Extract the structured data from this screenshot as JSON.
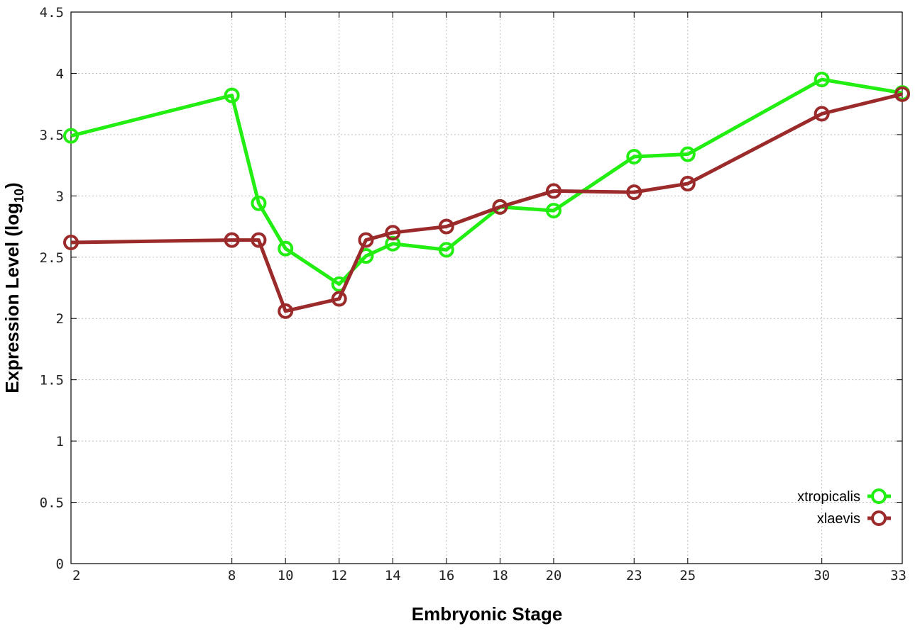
{
  "chart_data": {
    "type": "line",
    "title": "",
    "xlabel": "Embryonic Stage",
    "ylabel": "Expression Level (log",
    "ylabel_subscript": "10",
    "ylabel_suffix": ")",
    "xlim": [
      2,
      33
    ],
    "ylim": [
      0,
      4.5
    ],
    "x_ticks": [
      2,
      8,
      10,
      12,
      14,
      16,
      18,
      20,
      23,
      25,
      30,
      33
    ],
    "x_tick_labels": [
      "2",
      "8",
      "10",
      "12",
      "14",
      "16",
      "18",
      "20",
      "23",
      "25",
      "30",
      "33"
    ],
    "y_ticks": [
      0,
      0.5,
      1,
      1.5,
      2,
      2.5,
      3,
      3.5,
      4,
      4.5
    ],
    "y_tick_labels": [
      "0",
      "0.5",
      "1",
      "1.5",
      "2",
      "2.5",
      "3",
      "3.5",
      "4",
      "4.5"
    ],
    "grid": true,
    "legend_position": "bottom-right",
    "series": [
      {
        "name": "xtropicalis",
        "color": "#22ee11",
        "marker": "open-circle",
        "x": [
          2,
          8,
          9,
          10,
          12,
          13,
          14,
          16,
          18,
          20,
          23,
          25,
          30,
          33
        ],
        "y": [
          3.49,
          3.82,
          2.94,
          2.57,
          2.28,
          2.51,
          2.61,
          2.56,
          2.91,
          2.88,
          3.32,
          3.34,
          3.95,
          3.84
        ]
      },
      {
        "name": "xlaevis",
        "color": "#9b2b2b",
        "marker": "open-circle",
        "x": [
          2,
          8,
          9,
          10,
          12,
          13,
          14,
          16,
          18,
          20,
          23,
          25,
          30,
          33
        ],
        "y": [
          2.62,
          2.64,
          2.64,
          2.06,
          2.16,
          2.64,
          2.7,
          2.75,
          2.91,
          3.04,
          3.03,
          3.1,
          3.67,
          3.83
        ]
      }
    ]
  }
}
